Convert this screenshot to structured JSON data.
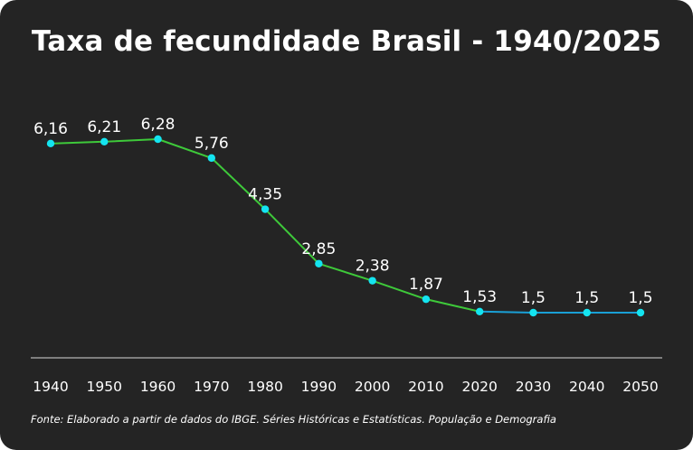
{
  "title": "Taxa de fecundidade Brasil - 1940/2025",
  "source": "Fonte: Elaborado a partir de dados do IBGE. Séries Históricas e Estatísticas. População e Demografia",
  "colors": {
    "background": "#242424",
    "text": "#ffffff",
    "historical_line": "#3ec93a",
    "projection_line": "#1aa0d6",
    "marker": "#14e4f0",
    "axis": "#d9d9d9"
  },
  "chart_data": {
    "type": "line",
    "title": "Taxa de fecundidade Brasil - 1940/2025",
    "xlabel": "",
    "ylabel": "",
    "categories": [
      "1940",
      "1950",
      "1960",
      "1970",
      "1980",
      "1990",
      "2000",
      "2010",
      "2020",
      "2030",
      "2040",
      "2050"
    ],
    "series": [
      {
        "name": "Taxa de fecundidade",
        "values": [
          6.16,
          6.21,
          6.28,
          5.76,
          4.35,
          2.85,
          2.38,
          1.87,
          1.53,
          1.5,
          1.5,
          1.5
        ],
        "labels": [
          "6,16",
          "6,21",
          "6,28",
          "5,76",
          "4,35",
          "2,85",
          "2,38",
          "1,87",
          "1,53",
          "1,5",
          "1,5",
          "1,5"
        ],
        "projection_from_index": 8
      }
    ],
    "ylim": [
      1.5,
      6.28
    ],
    "grid": false,
    "legend": "none",
    "data_labels": true
  }
}
